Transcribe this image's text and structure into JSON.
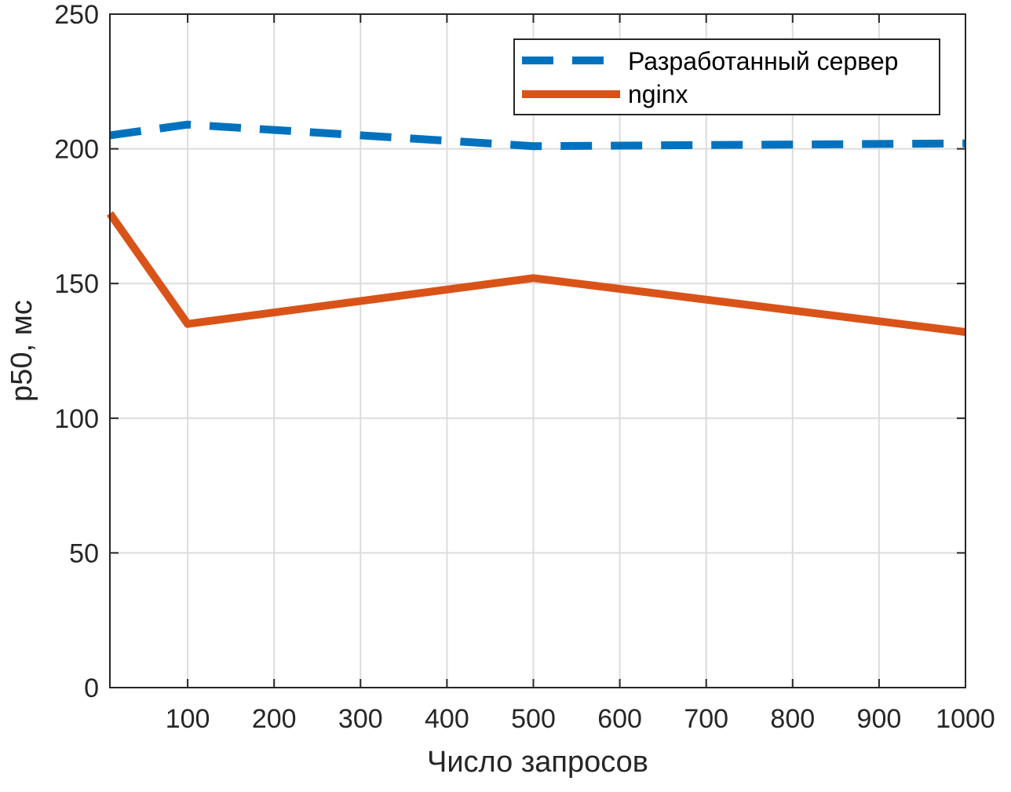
{
  "chart_data": {
    "type": "line",
    "xlabel": "Число запросов",
    "ylabel": "p50, мс",
    "xlim": [
      10,
      1000
    ],
    "ylim": [
      0,
      250
    ],
    "xticks": [
      100,
      200,
      300,
      400,
      500,
      600,
      700,
      800,
      900,
      1000
    ],
    "yticks": [
      0,
      50,
      100,
      150,
      200,
      250
    ],
    "grid": true,
    "legend_position": "top-right",
    "x": [
      10,
      100,
      500,
      1000
    ],
    "series": [
      {
        "name": "Разработанный сервер",
        "values": [
          205,
          209,
          201,
          202
        ],
        "color": "#0072BD",
        "style": "dashed"
      },
      {
        "name": "nginx",
        "values": [
          176,
          135,
          152,
          132
        ],
        "color": "#D95319",
        "style": "solid"
      }
    ]
  }
}
